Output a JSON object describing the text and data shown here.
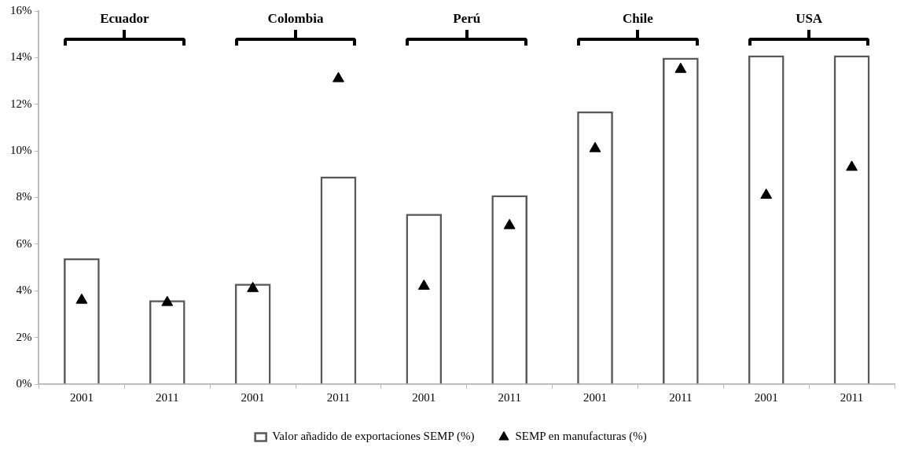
{
  "chart_data": {
    "type": "bar",
    "categories": [
      "2001",
      "2011",
      "2001",
      "2011",
      "2001",
      "2011",
      "2001",
      "2011",
      "2001",
      "2011"
    ],
    "series": [
      {
        "name": "Valor añadido de exportaciones SEMP (%)",
        "color": "#595959",
        "values": [
          5.4,
          3.6,
          4.3,
          8.9,
          7.3,
          8.1,
          11.7,
          14.0,
          14.1,
          14.1
        ]
      },
      {
        "name": "SEMP en manufacturas (%)",
        "type": "scatter",
        "color": "#000000",
        "marker": "triangle",
        "values": [
          3.6,
          3.5,
          4.1,
          13.1,
          4.2,
          6.8,
          10.1,
          13.5,
          8.1,
          9.3
        ]
      }
    ],
    "ylim": [
      0,
      16
    ],
    "yticks": [
      {
        "value": 0,
        "label": "0%"
      },
      {
        "value": 2,
        "label": "2%"
      },
      {
        "value": 4,
        "label": "4%"
      },
      {
        "value": 6,
        "label": "6%"
      },
      {
        "value": 8,
        "label": "8%"
      },
      {
        "value": 10,
        "label": "10%"
      },
      {
        "value": 12,
        "label": "12%"
      },
      {
        "value": 14,
        "label": "14%"
      },
      {
        "value": 16,
        "label": "16%"
      }
    ],
    "annotations": [
      "Ecuador",
      "Colombia",
      "Perú",
      "Chile",
      "USA"
    ],
    "grid": false,
    "legend": "bottom"
  }
}
